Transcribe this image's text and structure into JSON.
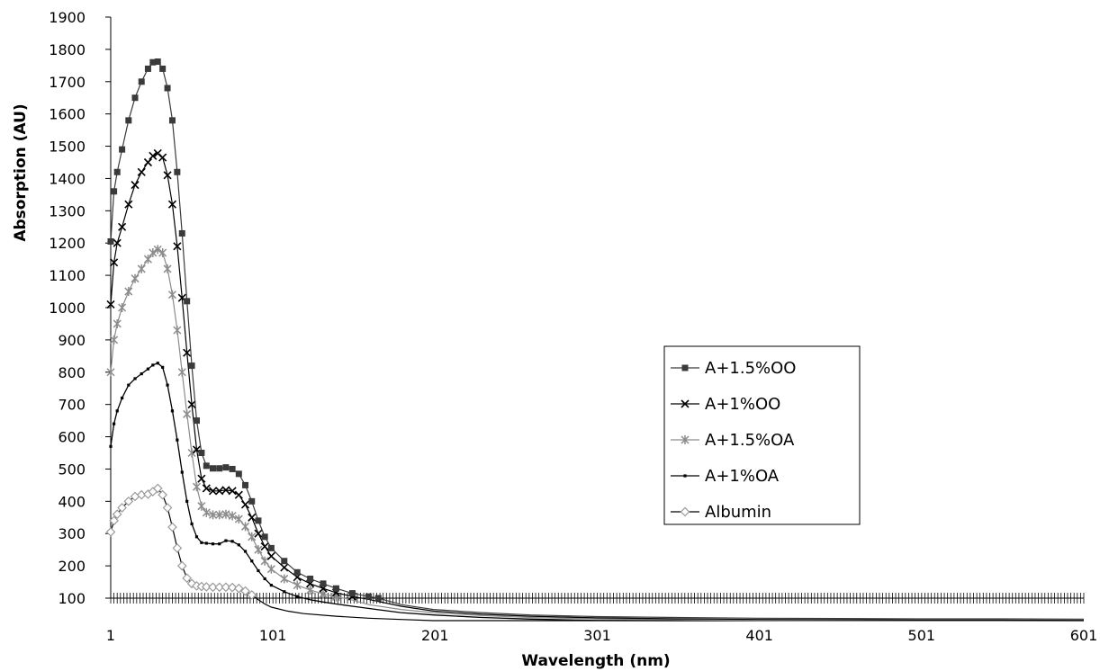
{
  "chart_data": {
    "type": "line",
    "title": "",
    "xlabel": "Wavelength (nm)",
    "ylabel": "Absorption (AU)",
    "xlim": [
      1,
      601
    ],
    "ylim": [
      100,
      1900
    ],
    "x_ticks": [
      "1",
      "101",
      "201",
      "301",
      "401",
      "501",
      "601"
    ],
    "y_ticks": [
      "100",
      "200",
      "300",
      "400",
      "500",
      "600",
      "700",
      "800",
      "900",
      "1000",
      "1100",
      "1200",
      "1300",
      "1400",
      "1500",
      "1600",
      "1700",
      "1800",
      "1900"
    ],
    "legend_position": "right",
    "series": [
      {
        "name": "A+1.5%OO",
        "color": "#3a3a3a",
        "marker": "square",
        "x": [
          1,
          3,
          5,
          8,
          12,
          16,
          20,
          24,
          27,
          30,
          33,
          36,
          39,
          42,
          45,
          48,
          51,
          54,
          57,
          60,
          64,
          68,
          72,
          76,
          80,
          84,
          88,
          92,
          96,
          100,
          108,
          116,
          124,
          132,
          140,
          150,
          160,
          166,
          180,
          200,
          230,
          260,
          300,
          350,
          400,
          450,
          500,
          550,
          601
        ],
        "y": [
          1205,
          1360,
          1420,
          1490,
          1580,
          1650,
          1700,
          1740,
          1760,
          1762,
          1740,
          1680,
          1580,
          1420,
          1230,
          1020,
          820,
          650,
          550,
          510,
          502,
          502,
          505,
          500,
          485,
          450,
          400,
          340,
          290,
          255,
          215,
          180,
          160,
          145,
          130,
          115,
          105,
          100,
          80,
          65,
          55,
          48,
          43,
          40,
          38,
          37,
          36,
          36,
          35
        ]
      },
      {
        "name": "A+1%OO",
        "color": "#000000",
        "marker": "x",
        "x": [
          1,
          3,
          5,
          8,
          12,
          16,
          20,
          24,
          27,
          30,
          33,
          36,
          39,
          42,
          45,
          48,
          51,
          54,
          57,
          60,
          64,
          68,
          72,
          76,
          80,
          84,
          88,
          92,
          96,
          100,
          108,
          116,
          124,
          132,
          140,
          150,
          158,
          180,
          200,
          230,
          260,
          300,
          350,
          400,
          450,
          500,
          550,
          601
        ],
        "y": [
          1010,
          1140,
          1200,
          1250,
          1320,
          1380,
          1420,
          1450,
          1470,
          1478,
          1465,
          1410,
          1320,
          1190,
          1030,
          860,
          700,
          560,
          470,
          440,
          432,
          432,
          435,
          432,
          420,
          390,
          350,
          300,
          260,
          230,
          195,
          165,
          145,
          130,
          117,
          105,
          98,
          75,
          60,
          50,
          44,
          39,
          36,
          34,
          33,
          32,
          32,
          31
        ]
      },
      {
        "name": "A+1.5%OA",
        "color": "#8c8c8c",
        "marker": "star",
        "x": [
          1,
          3,
          5,
          8,
          12,
          16,
          20,
          24,
          27,
          30,
          33,
          36,
          39,
          42,
          45,
          48,
          51,
          54,
          57,
          60,
          64,
          68,
          72,
          76,
          80,
          84,
          88,
          92,
          96,
          100,
          108,
          116,
          124,
          132,
          140,
          148,
          160,
          180,
          200,
          230,
          260,
          300,
          350,
          400,
          450,
          500,
          550,
          601
        ],
        "y": [
          800,
          900,
          950,
          1000,
          1050,
          1090,
          1120,
          1150,
          1170,
          1180,
          1170,
          1120,
          1040,
          930,
          800,
          670,
          550,
          445,
          385,
          365,
          358,
          358,
          360,
          355,
          345,
          322,
          290,
          250,
          215,
          190,
          160,
          140,
          125,
          113,
          104,
          97,
          80,
          65,
          55,
          46,
          40,
          36,
          33,
          31,
          30,
          29,
          29,
          28
        ]
      },
      {
        "name": "A+1%OA",
        "color": "#000000",
        "marker": "dash-dot",
        "x": [
          1,
          3,
          5,
          8,
          12,
          16,
          20,
          24,
          27,
          30,
          33,
          36,
          39,
          42,
          45,
          48,
          51,
          54,
          57,
          60,
          64,
          68,
          72,
          76,
          80,
          84,
          88,
          92,
          96,
          100,
          108,
          116,
          124,
          132,
          140,
          150,
          165,
          180,
          200,
          230,
          260,
          300,
          350,
          400,
          450,
          500,
          550,
          601
        ],
        "y": [
          570,
          640,
          680,
          720,
          760,
          780,
          795,
          810,
          822,
          828,
          815,
          760,
          680,
          590,
          490,
          400,
          330,
          290,
          272,
          270,
          268,
          268,
          278,
          276,
          265,
          245,
          215,
          185,
          160,
          140,
          120,
          105,
          95,
          88,
          82,
          75,
          65,
          55,
          48,
          40,
          35,
          31,
          29,
          27,
          26,
          25,
          25,
          24
        ]
      },
      {
        "name": "Albumin",
        "color": "#000000",
        "marker": "diamond",
        "marker_color": "#9a9a9a",
        "x": [
          1,
          3,
          5,
          8,
          12,
          16,
          20,
          24,
          27,
          30,
          33,
          36,
          39,
          42,
          45,
          48,
          51,
          54,
          57,
          60,
          64,
          68,
          72,
          76,
          80,
          84,
          88,
          92,
          96,
          100,
          110,
          120,
          140,
          160,
          180,
          200,
          230,
          260,
          300,
          350,
          400,
          450,
          500,
          550,
          601
        ],
        "y": [
          305,
          340,
          360,
          380,
          400,
          415,
          420,
          422,
          430,
          440,
          420,
          380,
          320,
          255,
          200,
          162,
          145,
          138,
          136,
          135,
          134,
          134,
          134,
          133,
          130,
          122,
          110,
          95,
          82,
          72,
          60,
          52,
          44,
          38,
          34,
          30,
          27,
          25,
          23,
          22,
          21,
          21,
          20,
          20,
          20
        ]
      }
    ]
  }
}
